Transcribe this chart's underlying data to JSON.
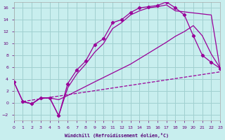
{
  "xlabel": "Windchill (Refroidissement éolien,°C)",
  "bg_color": "#c8eeee",
  "grid_color": "#a0d0d0",
  "line_color": "#990099",
  "xlim": [
    0,
    23
  ],
  "ylim": [
    -3,
    17
  ],
  "xticks": [
    0,
    1,
    2,
    3,
    4,
    5,
    6,
    7,
    8,
    9,
    10,
    11,
    12,
    13,
    14,
    15,
    16,
    17,
    18,
    19,
    20,
    21,
    22,
    23
  ],
  "yticks": [
    -2,
    0,
    2,
    4,
    6,
    8,
    10,
    12,
    14,
    16
  ],
  "line1_x": [
    0,
    1,
    2,
    3,
    4,
    5,
    6,
    7,
    8,
    9,
    10,
    11,
    12,
    13,
    14,
    15,
    16,
    17,
    18,
    19,
    20,
    21,
    22,
    23
  ],
  "line1_y": [
    3.5,
    0.2,
    -0.2,
    0.8,
    0.8,
    -2.2,
    3.2,
    5.5,
    7.0,
    9.8,
    10.8,
    13.5,
    14.0,
    15.2,
    16.0,
    16.2,
    16.4,
    17.0,
    16.0,
    14.8,
    11.3,
    8.0,
    6.8,
    5.8
  ],
  "line2_x": [
    0,
    1,
    2,
    3,
    4,
    5,
    6,
    7,
    8,
    9,
    10,
    11,
    12,
    13,
    14,
    15,
    16,
    17,
    18,
    22,
    23
  ],
  "line2_y": [
    3.5,
    0.2,
    -0.2,
    0.8,
    0.8,
    -2.2,
    2.5,
    4.8,
    6.5,
    8.5,
    10.0,
    12.5,
    13.5,
    14.8,
    15.5,
    16.0,
    16.2,
    16.5,
    15.5,
    14.8,
    5.5
  ],
  "line3_x": [
    1,
    2,
    3,
    4,
    5,
    6,
    9,
    13,
    17,
    18,
    19,
    20,
    21,
    22,
    23
  ],
  "line3_y": [
    0.2,
    -0.2,
    0.8,
    0.8,
    0.5,
    1.2,
    3.5,
    6.5,
    10.2,
    11.2,
    12.0,
    13.0,
    11.3,
    8.2,
    5.8
  ],
  "line4_x": [
    1,
    23
  ],
  "line4_y": [
    0.2,
    5.2
  ]
}
